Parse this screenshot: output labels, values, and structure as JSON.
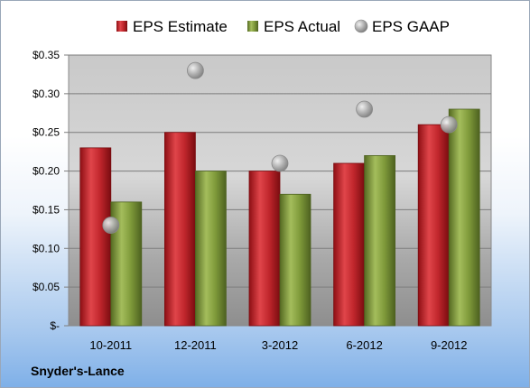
{
  "chart_data": {
    "type": "bar",
    "title": "",
    "xlabel": "",
    "ylabel": "",
    "categories": [
      "10-2011",
      "12-2011",
      "3-2012",
      "6-2012",
      "9-2012"
    ],
    "series": [
      {
        "name": "EPS Estimate",
        "type": "bar",
        "color": "#c0262c",
        "values": [
          0.23,
          0.25,
          0.2,
          0.21,
          0.26
        ]
      },
      {
        "name": "EPS Actual",
        "type": "bar",
        "color": "#7f9a3a",
        "values": [
          0.16,
          0.2,
          0.17,
          0.22,
          0.28
        ]
      },
      {
        "name": "EPS GAAP",
        "type": "scatter",
        "color": "#a8a8a8",
        "values": [
          0.13,
          0.33,
          0.21,
          0.28,
          0.26
        ]
      }
    ],
    "ylim": [
      0,
      0.35
    ],
    "yticks": [
      0,
      0.05,
      0.1,
      0.15,
      0.2,
      0.25,
      0.3,
      0.35
    ],
    "ytick_labels": [
      "$-",
      "$0.05",
      "$0.10",
      "$0.15",
      "$0.20",
      "$0.25",
      "$0.30",
      "$0.35"
    ],
    "grid": true,
    "legend_position": "top"
  },
  "footer": {
    "company": "Snyder's-Lance"
  }
}
